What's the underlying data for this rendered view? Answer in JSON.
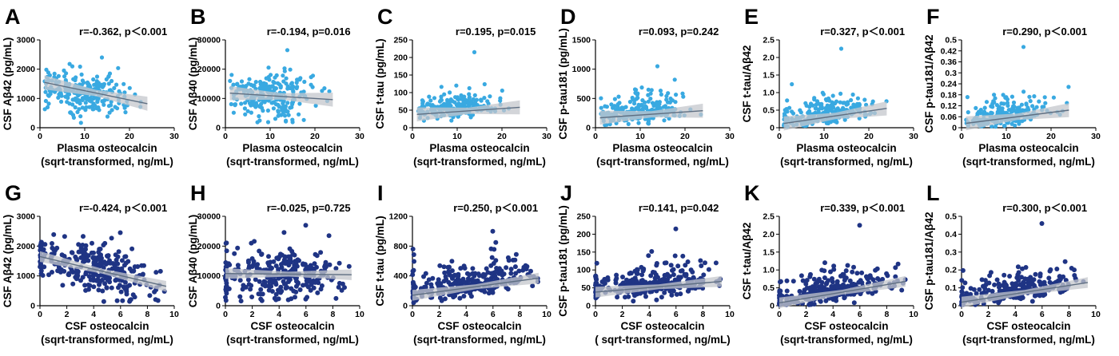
{
  "colors": {
    "top_row_points": "#39a9e1",
    "bottom_row_points": "#1f3484",
    "fit_line": "#5f6f82",
    "confidence_band": "#c4c7cc"
  },
  "chart_data": [
    {
      "panel": "A",
      "type": "scatter",
      "stat": "r=-0.362, p＜0.001",
      "xlabel": "Plasma osteocalcin",
      "xlabel2": "(sqrt-transformed, ng/mL)",
      "ylabel": "CSF Aβ42 (pg/mL)",
      "xlim": [
        0,
        30
      ],
      "ylim": [
        0,
        3000
      ],
      "xticks": [
        "0",
        "10",
        "20",
        "30"
      ],
      "yticks": [
        "0",
        "1000",
        "2000",
        "3000"
      ],
      "color": "#39a9e1",
      "fit": {
        "x": [
          1,
          24
        ],
        "y": [
          1550,
          820
        ]
      },
      "band": 0.08,
      "cloud": {
        "xmin": 1,
        "xmax": 24,
        "xmean": 10,
        "xsd": 4.8,
        "sd": 380,
        "ymin": 100,
        "ymax": 2400,
        "n": 240,
        "skew": false,
        "zeros": 0
      }
    },
    {
      "panel": "B",
      "type": "scatter",
      "stat": "r=-0.194, p=0.016",
      "xlabel": "Plasma osteocalcin",
      "xlabel2": "(sqrt-transformed, ng/mL)",
      "ylabel": "CSF Aβ40 (pg/mL)",
      "xlim": [
        0,
        30
      ],
      "ylim": [
        0,
        30000
      ],
      "xticks": [
        "0",
        "10",
        "20",
        "30"
      ],
      "yticks": [
        "0",
        "10000",
        "20000",
        "30000"
      ],
      "color": "#39a9e1",
      "fit": {
        "x": [
          1,
          24
        ],
        "y": [
          11800,
          9600
        ]
      },
      "band": 0.08,
      "cloud": {
        "xmin": 1,
        "xmax": 24,
        "xmean": 10,
        "xsd": 4.8,
        "sd": 4200,
        "ymin": 1500,
        "ymax": 26500,
        "n": 240,
        "skew": false,
        "zeros": 0
      }
    },
    {
      "panel": "C",
      "type": "scatter",
      "stat": "r=0.195, p=0.015",
      "xlabel": "Plasma osteocalcin",
      "xlabel2": "(sqrt-transformed, ng/mL)",
      "ylabel": "CSF t-tau (pg/mL)",
      "xlim": [
        0,
        30
      ],
      "ylim": [
        0,
        250
      ],
      "xticks": [
        "0",
        "10",
        "20",
        "30"
      ],
      "yticks": [
        "0",
        "50",
        "100",
        "150",
        "200",
        "250"
      ],
      "color": "#39a9e1",
      "fit": {
        "x": [
          1,
          24
        ],
        "y": [
          38,
          58
        ]
      },
      "band": 0.08,
      "cloud": {
        "xmin": 1,
        "xmax": 24,
        "xmean": 10,
        "xsd": 4.8,
        "sd": 18,
        "ymin": 15,
        "ymax": 215,
        "n": 240,
        "skew": true,
        "zeros": 0
      }
    },
    {
      "panel": "D",
      "type": "scatter",
      "stat": "r=0.093, p=0.242",
      "xlabel": "Plasma osteocalcin",
      "xlabel2": "(sqrt-transformed, ng/mL)",
      "ylabel": "CSF p-tau181 (pg/mL)",
      "xlim": [
        0,
        30
      ],
      "ylim": [
        0,
        1500
      ],
      "xticks": [
        "0",
        "10",
        "20",
        "30"
      ],
      "yticks": [
        "0",
        "500",
        "1000",
        "1500"
      ],
      "color": "#39a9e1",
      "fit": {
        "x": [
          1,
          24
        ],
        "y": [
          170,
          290
        ]
      },
      "band": 0.08,
      "cloud": {
        "xmin": 1,
        "xmax": 24,
        "xmean": 10,
        "xsd": 4.8,
        "sd": 110,
        "ymin": 30,
        "ymax": 1050,
        "n": 240,
        "skew": true,
        "zeros": 0
      }
    },
    {
      "panel": "E",
      "type": "scatter",
      "stat": "r=0.327, p＜0.001",
      "xlabel": "Plasma osteocalcin",
      "xlabel2": "(sqrt-transformed, ng/mL)",
      "ylabel": "CSF t-tau/Aβ42",
      "xlim": [
        0,
        30
      ],
      "ylim": [
        0,
        2.5
      ],
      "xticks": [
        "0",
        "10",
        "20",
        "30"
      ],
      "yticks": [
        "0",
        "0.5",
        "1.0",
        "1.5",
        "2.0",
        "2.5"
      ],
      "color": "#39a9e1",
      "fit": {
        "x": [
          1,
          24
        ],
        "y": [
          0.12,
          0.55
        ]
      },
      "band": 0.08,
      "cloud": {
        "xmin": 1,
        "xmax": 24,
        "xmean": 10,
        "xsd": 4.8,
        "sd": 0.2,
        "ymin": 0.02,
        "ymax": 2.25,
        "n": 240,
        "skew": true,
        "zeros": 0
      }
    },
    {
      "panel": "F",
      "type": "scatter",
      "stat": "r=0.290, p＜0.001",
      "xlabel": "Plasma osteocalcin",
      "xlabel2": "(sqrt-transformed, ng/mL)",
      "ylabel": "CSF p-tau181/Aβ42",
      "xlim": [
        0,
        30
      ],
      "ylim": [
        0,
        0.5
      ],
      "xticks": [
        "0",
        "10",
        "20",
        "30"
      ],
      "yticks": [
        "0",
        "0.06",
        "0.12",
        "0.18",
        "0.24",
        "0.3",
        "0.36",
        "0.42",
        "0.5"
      ],
      "color": "#39a9e1",
      "fit": {
        "x": [
          1,
          24
        ],
        "y": [
          0.025,
          0.1
        ]
      },
      "band": 0.08,
      "cloud": {
        "xmin": 1,
        "xmax": 24,
        "xmean": 10,
        "xsd": 4.8,
        "sd": 0.035,
        "ymin": 0.005,
        "ymax": 0.46,
        "n": 240,
        "skew": true,
        "zeros": 0
      }
    },
    {
      "panel": "G",
      "type": "scatter",
      "stat": "r=-0.424, p＜0.001",
      "xlabel": "CSF osteocalcin",
      "xlabel2": "(sqrt-transformed, ng/mL)",
      "ylabel": "CSF Aβ42 (pg/mL)",
      "xlim": [
        0,
        10
      ],
      "ylim": [
        0,
        3000
      ],
      "xticks": [
        "0",
        "2",
        "4",
        "6",
        "8",
        "10"
      ],
      "yticks": [
        "0",
        "1000",
        "2000",
        "3000"
      ],
      "color": "#1f3484",
      "fit": {
        "x": [
          0,
          9.4
        ],
        "y": [
          1650,
          650
        ]
      },
      "band": 0.06,
      "cloud": {
        "xmin": 0.1,
        "xmax": 9.4,
        "xmean": 4.3,
        "xsd": 2.1,
        "sd": 380,
        "ymin": 100,
        "ymax": 2450,
        "n": 300,
        "skew": false,
        "zeros": 30
      }
    },
    {
      "panel": "H",
      "type": "scatter",
      "stat": "r=-0.025, p=0.725",
      "xlabel": "CSF osteocalcin",
      "xlabel2": "(sqrt-transformed, ng/mL)",
      "ylabel": "CSF Aβ40 (pg/mL)",
      "xlim": [
        0,
        10
      ],
      "ylim": [
        0,
        30000
      ],
      "xticks": [
        "0",
        "2",
        "4",
        "6",
        "8",
        "10"
      ],
      "yticks": [
        "0",
        "10000",
        "20000",
        "30000"
      ],
      "color": "#1f3484",
      "fit": {
        "x": [
          0,
          9.4
        ],
        "y": [
          10800,
          10400
        ]
      },
      "band": 0.06,
      "cloud": {
        "xmin": 0.1,
        "xmax": 9.4,
        "xmean": 4.3,
        "xsd": 2.1,
        "sd": 4200,
        "ymin": 1500,
        "ymax": 27000,
        "n": 300,
        "skew": false,
        "zeros": 30
      }
    },
    {
      "panel": "I",
      "type": "scatter",
      "stat": "r=0.250, p＜0.001",
      "xlabel": "CSF osteocalcin",
      "xlabel2": "(sqrt-transformed, ng/mL)",
      "ylabel": "CSF t-tau (pg/mL)",
      "xlim": [
        0,
        10
      ],
      "ylim": [
        0,
        1200
      ],
      "xticks": [
        "0",
        "2",
        "4",
        "6",
        "8",
        "10"
      ],
      "yticks": [
        "0",
        "400",
        "800",
        "1200"
      ],
      "color": "#1f3484",
      "fit": {
        "x": [
          0,
          9.4
        ],
        "y": [
          140,
          370
        ]
      },
      "band": 0.06,
      "cloud": {
        "xmin": 0.1,
        "xmax": 9.4,
        "xmean": 4.3,
        "xsd": 2.1,
        "sd": 110,
        "ymin": 40,
        "ymax": 1000,
        "n": 300,
        "skew": true,
        "zeros": 30
      }
    },
    {
      "panel": "J",
      "type": "scatter",
      "stat": "r=0.141, p=0.042",
      "xlabel": "CSF osteocalcin",
      "xlabel2": "( sqrt-transformed, ng/mL)",
      "ylabel": "CSF p-tau181 (pg/mL)",
      "xlim": [
        0,
        10
      ],
      "ylim": [
        0,
        250
      ],
      "xticks": [
        "0",
        "2",
        "4",
        "6",
        "8",
        "10"
      ],
      "yticks": [
        "0",
        "50",
        "100",
        "150",
        "200",
        "250"
      ],
      "color": "#1f3484",
      "fit": {
        "x": [
          0,
          9.4
        ],
        "y": [
          38,
          68
        ]
      },
      "band": 0.06,
      "cloud": {
        "xmin": 0.1,
        "xmax": 9.4,
        "xmean": 4.3,
        "xsd": 2.1,
        "sd": 22,
        "ymin": 8,
        "ymax": 215,
        "n": 300,
        "skew": true,
        "zeros": 30
      }
    },
    {
      "panel": "K",
      "type": "scatter",
      "stat": "r=0.339, p＜0.001",
      "xlabel": "CSF osteocalcin",
      "xlabel2": "(sqrt-transformed, ng/mL)",
      "ylabel": "CSF t-tau/Aβ42",
      "xlim": [
        0,
        10
      ],
      "ylim": [
        0,
        2.5
      ],
      "xticks": [
        "0",
        "2",
        "4",
        "6",
        "8",
        "10"
      ],
      "yticks": [
        "0",
        "0.5",
        "1.0",
        "1.5",
        "2.0",
        "2.5"
      ],
      "color": "#1f3484",
      "fit": {
        "x": [
          0,
          9.4
        ],
        "y": [
          0.08,
          0.68
        ]
      },
      "band": 0.06,
      "cloud": {
        "xmin": 0.1,
        "xmax": 9.4,
        "xmean": 4.3,
        "xsd": 2.1,
        "sd": 0.2,
        "ymin": 0.02,
        "ymax": 2.25,
        "n": 300,
        "skew": true,
        "zeros": 30
      }
    },
    {
      "panel": "L",
      "type": "scatter",
      "stat": "r=0.300, p＜0.001",
      "xlabel": "CSF osteocalcin",
      "xlabel2": "(sqrt-transformed, ng/mL)",
      "ylabel": "CSF p-tau181/Aβ42",
      "xlim": [
        0,
        10
      ],
      "ylim": [
        0,
        0.5
      ],
      "xticks": [
        "0",
        "2",
        "4",
        "6",
        "8",
        "10"
      ],
      "yticks": [
        "0",
        "0.1",
        "0.2",
        "0.3",
        "0.4",
        "0.5"
      ],
      "color": "#1f3484",
      "fit": {
        "x": [
          0,
          9.4
        ],
        "y": [
          0.02,
          0.13
        ]
      },
      "band": 0.06,
      "cloud": {
        "xmin": 0.1,
        "xmax": 9.4,
        "xmean": 4.3,
        "xsd": 2.1,
        "sd": 0.035,
        "ymin": 0.005,
        "ymax": 0.46,
        "n": 300,
        "skew": true,
        "zeros": 30
      }
    }
  ]
}
